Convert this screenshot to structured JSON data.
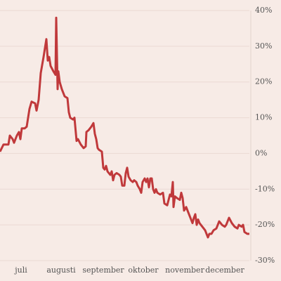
{
  "chart_data": {
    "type": "line",
    "x": [
      0,
      5,
      12,
      14,
      18,
      20,
      24,
      27,
      29,
      31,
      35,
      38,
      42,
      45,
      50,
      52,
      55,
      58,
      62,
      66,
      68,
      70,
      72,
      76,
      79,
      80,
      82,
      83,
      85,
      88,
      92,
      96,
      98,
      100,
      104,
      106,
      109,
      111,
      115,
      119,
      122,
      123,
      126,
      130,
      133,
      135,
      137,
      139,
      141,
      145,
      147,
      149,
      151,
      153,
      155,
      157,
      159,
      161,
      163,
      166,
      170,
      172,
      174,
      177,
      179,
      181,
      183,
      186,
      189,
      191,
      194,
      196,
      199,
      201,
      203,
      206,
      208,
      210,
      212,
      214,
      216,
      218,
      220,
      222,
      224,
      228,
      232,
      234,
      238,
      240,
      242,
      244,
      246,
      247,
      249,
      252,
      256,
      258,
      260,
      262,
      265,
      267,
      270,
      272,
      274,
      276,
      278,
      280,
      282,
      284,
      288,
      292,
      294,
      296,
      298,
      301,
      304,
      308,
      312,
      316,
      320,
      322,
      326,
      330,
      334,
      338,
      340,
      344,
      346,
      348,
      352,
      355
    ],
    "series": [
      {
        "color": "#c0393b",
        "values": [
          0.5,
          2.5,
          2.5,
          5,
          4,
          3,
          5,
          6,
          4,
          7,
          7,
          7.5,
          12.5,
          14.5,
          14,
          12,
          15,
          22.5,
          27,
          32,
          26,
          27,
          24.5,
          23,
          22,
          38,
          18,
          23,
          20,
          18,
          16,
          15.5,
          11.5,
          10,
          9.5,
          10,
          3.5,
          4,
          2.5,
          1.5,
          2,
          6,
          6.5,
          7.5,
          8.5,
          5.5,
          4,
          1.5,
          1,
          0.5,
          -4,
          -4.5,
          -3.5,
          -5,
          -5.5,
          -6,
          -5,
          -7.5,
          -6,
          -5.5,
          -6,
          -6.5,
          -9,
          -9,
          -5.5,
          -4,
          -6.5,
          -7.5,
          -8,
          -7.5,
          -8,
          -9,
          -10,
          -11,
          -8,
          -7,
          -8,
          -7,
          -9.5,
          -7,
          -7,
          -10,
          -11,
          -10,
          -11,
          -11.5,
          -11,
          -14,
          -14.5,
          -13,
          -11.5,
          -12,
          -8,
          -15,
          -12,
          -12.5,
          -13,
          -11,
          -12.5,
          -16,
          -15,
          -16,
          -17.5,
          -18.5,
          -19.5,
          -18,
          -17,
          -20,
          -18.5,
          -19.5,
          -20.5,
          -21.5,
          -22.5,
          -23.5,
          -22.5,
          -22.5,
          -21.5,
          -21,
          -19,
          -20,
          -20.5,
          -20,
          -18,
          -19.5,
          -20.5,
          -21,
          -20,
          -20.5,
          -20,
          -22,
          -22.5,
          -22.5
        ]
      }
    ],
    "xlim": [
      0,
      355
    ],
    "xticks": [
      {
        "value": 30,
        "label": "juli"
      },
      {
        "value": 87,
        "label": "augusti"
      },
      {
        "value": 147,
        "label": "september"
      },
      {
        "value": 204,
        "label": "oktober"
      },
      {
        "value": 263,
        "label": "november"
      },
      {
        "value": 320,
        "label": "december"
      }
    ],
    "ylim": [
      -30,
      40
    ],
    "yticks": [
      {
        "value": 40,
        "label": "40%"
      },
      {
        "value": 30,
        "label": "30%"
      },
      {
        "value": 20,
        "label": "20%"
      },
      {
        "value": 10,
        "label": "10%"
      },
      {
        "value": 0,
        "label": "0%"
      },
      {
        "value": -10,
        "label": "-10%"
      },
      {
        "value": -20,
        "label": "-20%"
      },
      {
        "value": -30,
        "label": "-30%"
      }
    ],
    "grid": true
  }
}
